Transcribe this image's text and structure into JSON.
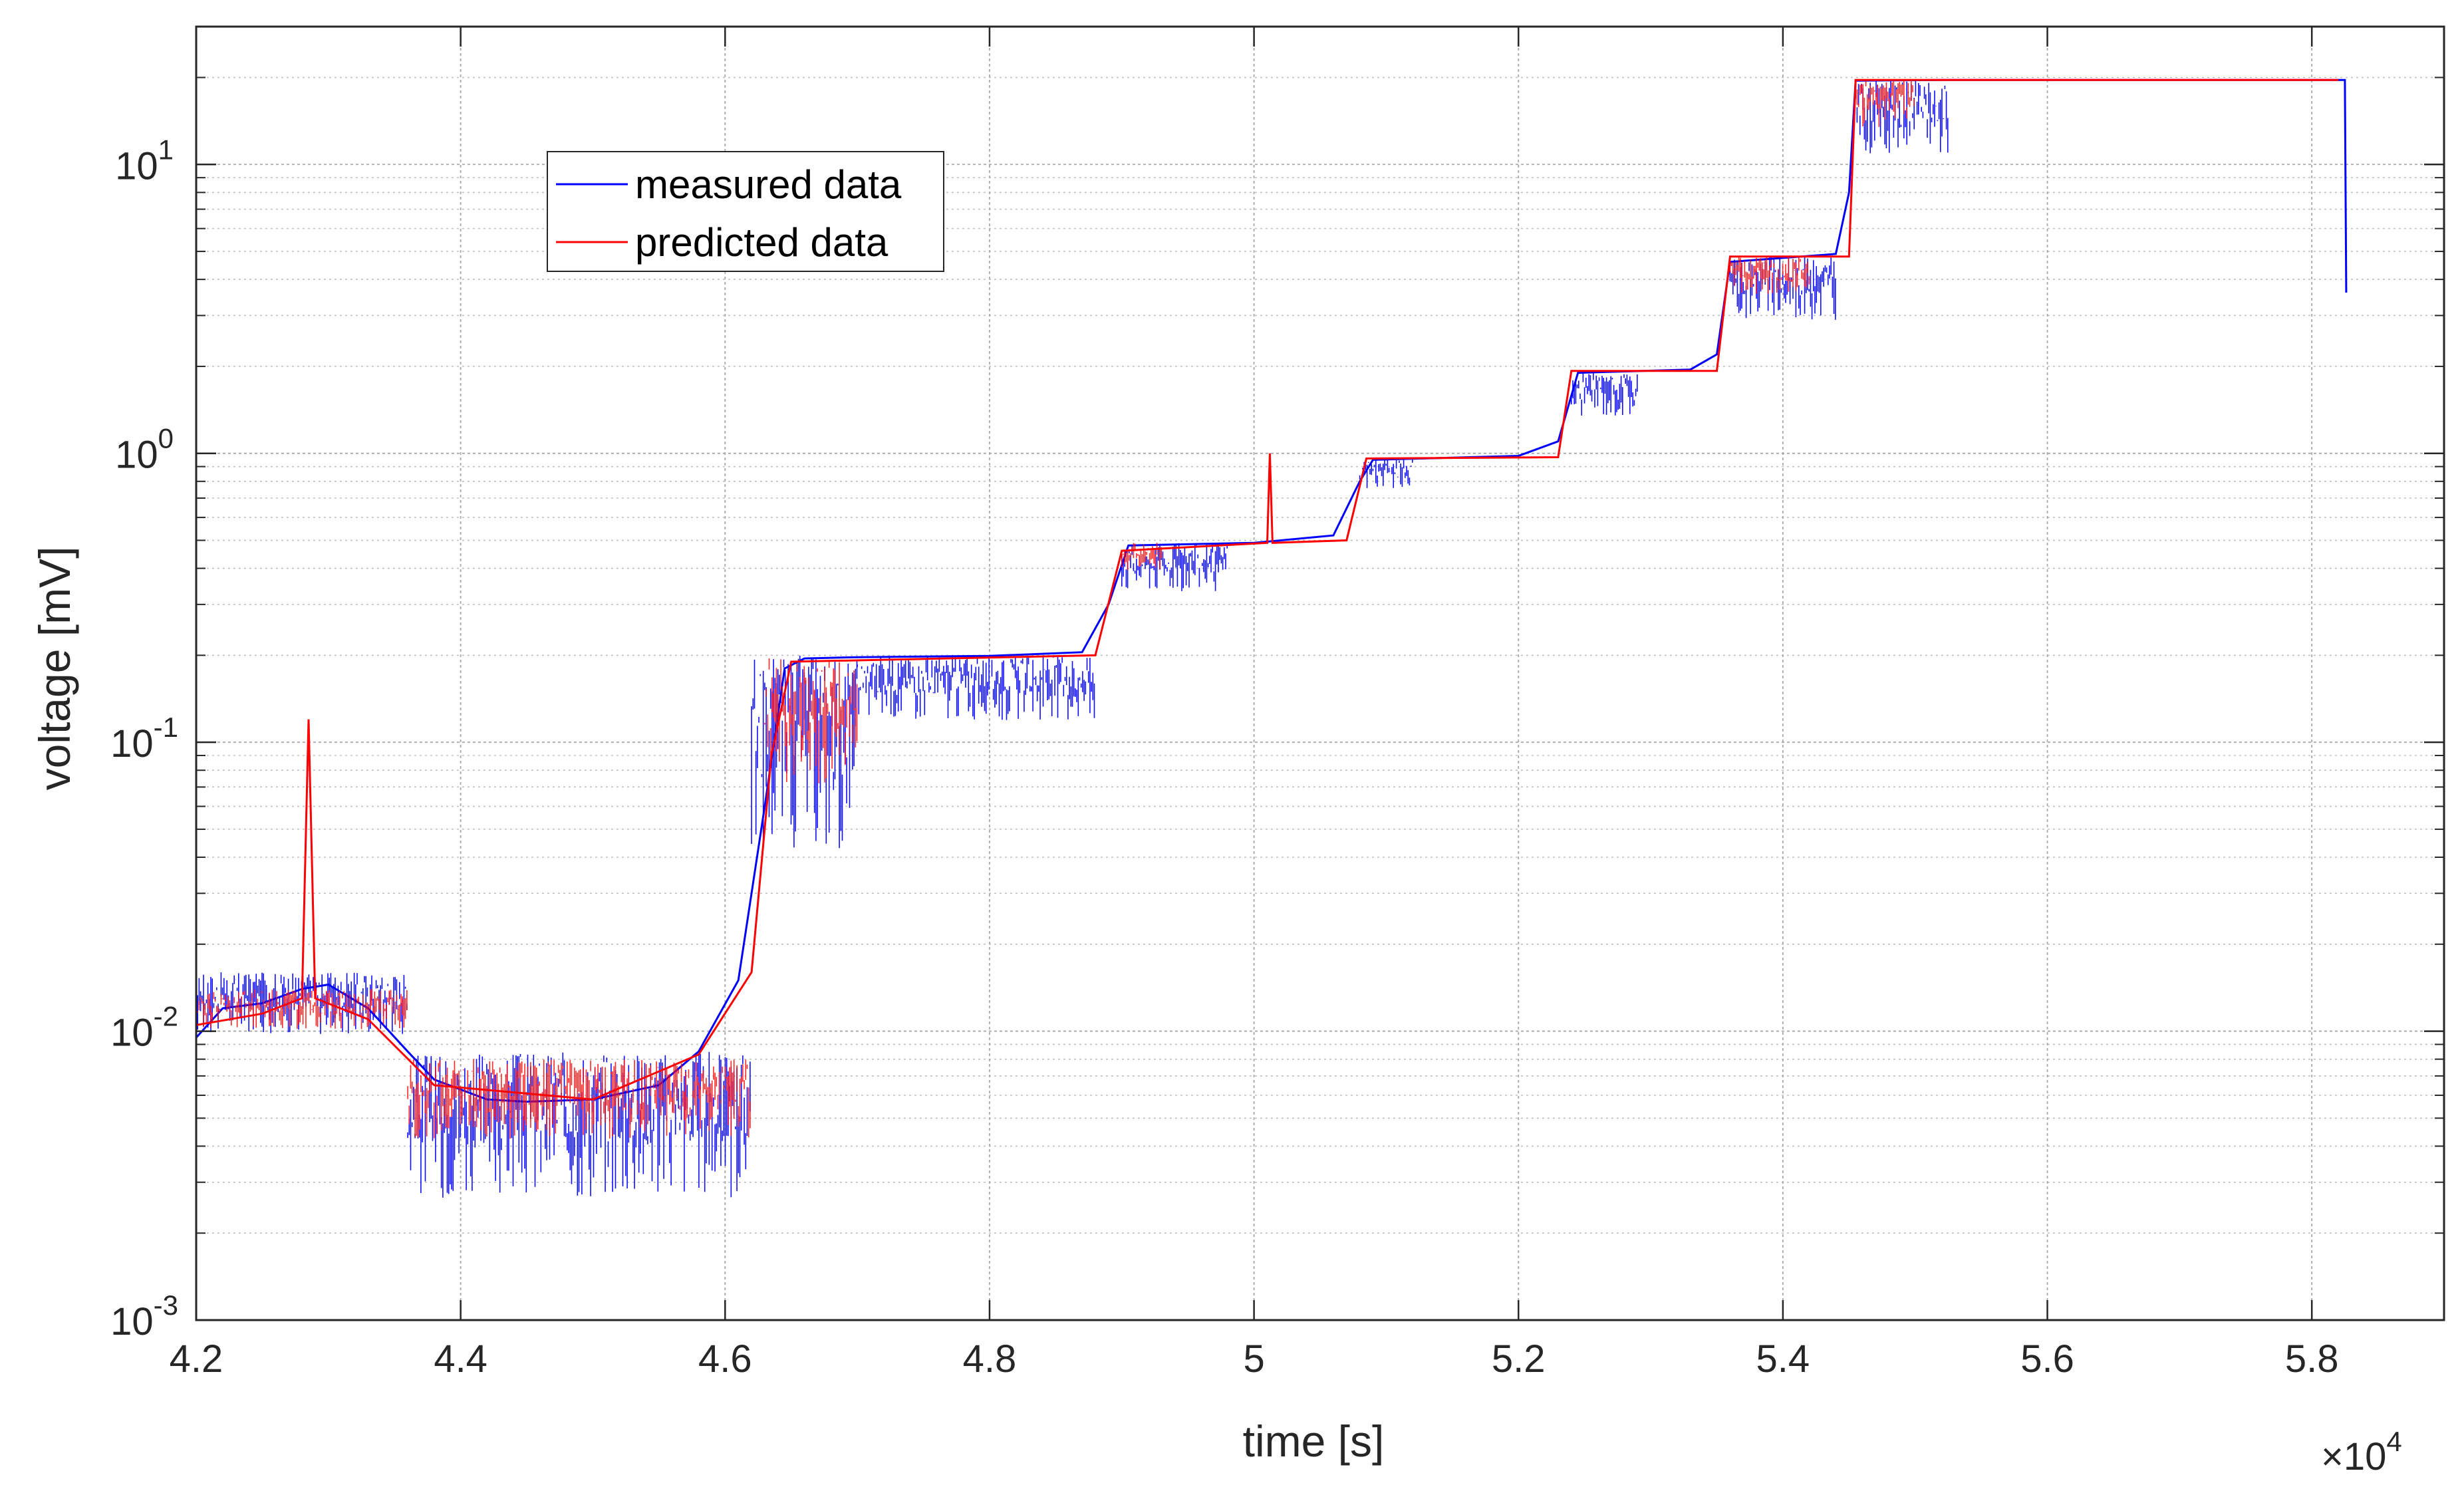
{
  "chart_data": {
    "type": "line",
    "title": "",
    "xlabel": "time [s]",
    "ylabel": "voltage [mV]",
    "x_scale_label": {
      "base": "×10",
      "exponent": "4"
    },
    "xlim": [
      4.2,
      5.9
    ],
    "ylim": [
      0.001,
      30
    ],
    "y_scale": "log",
    "grid": {
      "major": true,
      "minor_y": true
    },
    "legend_placement": "top-left",
    "x_ticks": [
      {
        "value": 4.2,
        "label": "4.2"
      },
      {
        "value": 4.4,
        "label": "4.4"
      },
      {
        "value": 4.6,
        "label": "4.6"
      },
      {
        "value": 4.8,
        "label": "4.8"
      },
      {
        "value": 5.0,
        "label": "5"
      },
      {
        "value": 5.2,
        "label": "5.2"
      },
      {
        "value": 5.4,
        "label": "5.4"
      },
      {
        "value": 5.6,
        "label": "5.6"
      },
      {
        "value": 5.8,
        "label": "5.8"
      }
    ],
    "y_ticks": [
      {
        "value": 0.001,
        "base": "10",
        "exp": "-3"
      },
      {
        "value": 0.01,
        "base": "10",
        "exp": "-2"
      },
      {
        "value": 0.1,
        "base": "10",
        "exp": "-1"
      },
      {
        "value": 1,
        "base": "10",
        "exp": "0"
      },
      {
        "value": 10,
        "base": "10",
        "exp": "1"
      }
    ],
    "series": [
      {
        "name": "measured data",
        "color": "#0000ff",
        "points": [
          [
            4.2,
            0.0095
          ],
          [
            4.22,
            0.012
          ],
          [
            4.25,
            0.0125
          ],
          [
            4.28,
            0.014
          ],
          [
            4.3,
            0.0145
          ],
          [
            4.33,
            0.012
          ],
          [
            4.36,
            0.0085
          ],
          [
            4.38,
            0.0068
          ],
          [
            4.42,
            0.0058
          ],
          [
            4.45,
            0.0057
          ],
          [
            4.5,
            0.0058
          ],
          [
            4.55,
            0.0065
          ],
          [
            4.58,
            0.0085
          ],
          [
            4.61,
            0.015
          ],
          [
            4.63,
            0.06
          ],
          [
            4.645,
            0.18
          ],
          [
            4.66,
            0.195
          ],
          [
            4.7,
            0.197
          ],
          [
            4.8,
            0.199
          ],
          [
            4.87,
            0.205
          ],
          [
            4.89,
            0.3
          ],
          [
            4.905,
            0.48
          ],
          [
            5.0,
            0.49
          ],
          [
            5.06,
            0.52
          ],
          [
            5.08,
            0.8
          ],
          [
            5.09,
            0.95
          ],
          [
            5.2,
            0.98
          ],
          [
            5.23,
            1.1
          ],
          [
            5.245,
            1.9
          ],
          [
            5.33,
            1.95
          ],
          [
            5.35,
            2.2
          ],
          [
            5.36,
            4.6
          ],
          [
            5.44,
            4.9
          ],
          [
            5.45,
            8.0
          ],
          [
            5.455,
            19.5
          ],
          [
            5.52,
            19.6
          ],
          [
            5.82,
            19.6
          ],
          [
            5.825,
            19.6
          ],
          [
            5.826,
            3.6
          ]
        ],
        "noise_bands": [
          {
            "x": [
              4.2,
              4.36
            ],
            "low": 0.0075,
            "high": 0.016
          },
          {
            "x": [
              4.36,
              4.62
            ],
            "low": 0.0014,
            "high": 0.0085
          },
          {
            "x": [
              4.62,
              4.7
            ],
            "low": 0.018,
            "high": 0.2
          },
          {
            "x": [
              4.7,
              4.88
            ],
            "low": 0.09,
            "high": 0.2
          },
          {
            "x": [
              4.9,
              4.98
            ],
            "low": 0.27,
            "high": 0.49
          },
          {
            "x": [
              5.08,
              5.12
            ],
            "low": 0.65,
            "high": 0.96
          },
          {
            "x": [
              5.24,
              5.29
            ],
            "low": 1.1,
            "high": 1.9
          },
          {
            "x": [
              5.36,
              5.44
            ],
            "low": 2.2,
            "high": 4.8
          },
          {
            "x": [
              5.455,
              5.525
            ],
            "low": 8.0,
            "high": 19.5
          }
        ]
      },
      {
        "name": "predicted data",
        "color": "#ff0000",
        "points": [
          [
            4.2,
            0.0105
          ],
          [
            4.25,
            0.0115
          ],
          [
            4.28,
            0.013
          ],
          [
            4.285,
            0.12
          ],
          [
            4.29,
            0.013
          ],
          [
            4.33,
            0.011
          ],
          [
            4.38,
            0.0065
          ],
          [
            4.5,
            0.0058
          ],
          [
            4.58,
            0.0083
          ],
          [
            4.62,
            0.016
          ],
          [
            4.635,
            0.09
          ],
          [
            4.65,
            0.19
          ],
          [
            4.88,
            0.2
          ],
          [
            4.9,
            0.46
          ],
          [
            5.01,
            0.49
          ],
          [
            5.012,
            1.0
          ],
          [
            5.014,
            0.49
          ],
          [
            5.07,
            0.5
          ],
          [
            5.085,
            0.96
          ],
          [
            5.23,
            0.97
          ],
          [
            5.24,
            1.93
          ],
          [
            5.35,
            1.93
          ],
          [
            5.36,
            4.8
          ],
          [
            5.45,
            4.8
          ],
          [
            5.455,
            19.6
          ],
          [
            5.82,
            19.6
          ]
        ],
        "noise_bands": [
          {
            "x": [
              4.2,
              4.36
            ],
            "low": 0.0085,
            "high": 0.014
          },
          {
            "x": [
              4.36,
              4.62
            ],
            "low": 0.003,
            "high": 0.008
          },
          {
            "x": [
              4.63,
              4.7
            ],
            "low": 0.04,
            "high": 0.2
          },
          {
            "x": [
              4.9,
              4.93
            ],
            "low": 0.35,
            "high": 0.49
          },
          {
            "x": [
              5.36,
              5.42
            ],
            "low": 3.0,
            "high": 4.8
          },
          {
            "x": [
              5.455,
              5.5
            ],
            "low": 11.0,
            "high": 19.6
          }
        ]
      }
    ]
  }
}
